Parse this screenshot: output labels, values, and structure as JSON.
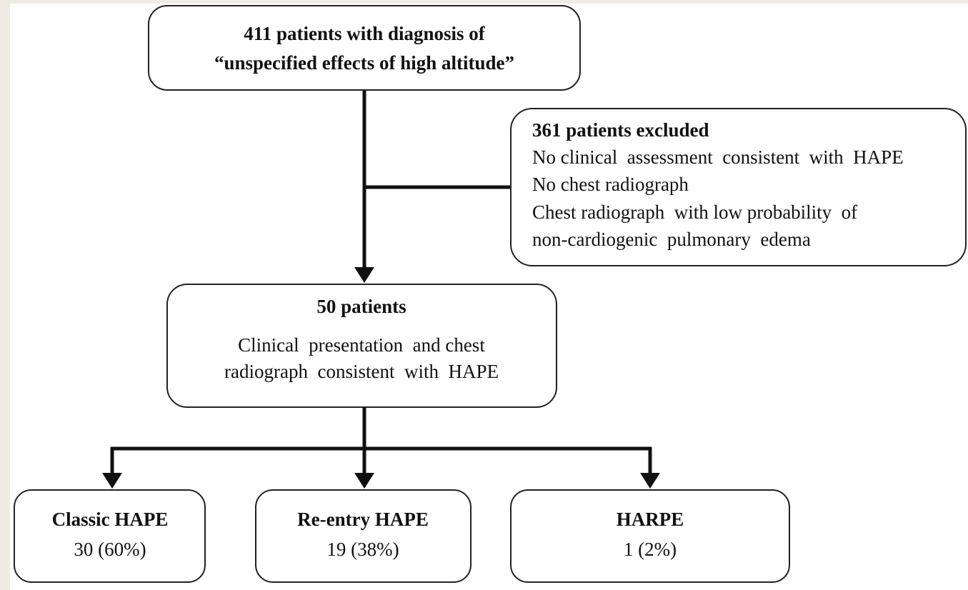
{
  "nodes": [
    {
      "lines": [
        "411 patients with diagnosis of",
        "“unspecified effects of high altitude”"
      ]
    },
    {
      "title": "361 patients excluded",
      "lines": [
        "No clinical  assessment  consistent  with  HAPE",
        "No chest radiograph",
        "Chest radiograph  with low probability  of",
        "non-cardiogenic  pulmonary  edema"
      ]
    },
    {
      "title": "50 patients",
      "lines": [
        "Clinical  presentation  and chest",
        "radiograph  consistent  with  HAPE"
      ]
    },
    {
      "title": "Classic HAPE",
      "lines": [
        "30 (60%)"
      ]
    },
    {
      "title": "Re-entry HAPE",
      "lines": [
        "19 (38%)"
      ]
    },
    {
      "title": "HARPE",
      "lines": [
        "1 (2%)"
      ]
    }
  ]
}
